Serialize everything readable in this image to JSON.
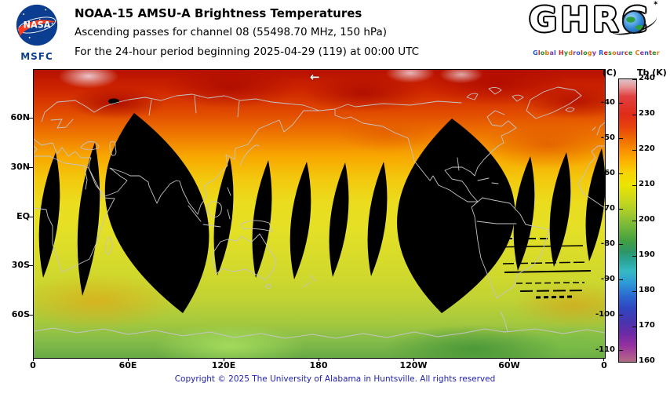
{
  "header": {
    "title": "NOAA-15 AMSU-A Brightness Temperatures",
    "subtitle": "Ascending passes for channel 08 (55498.70 MHz, 150 hPa)",
    "period_line": "For the 24-hour period beginning 2025-04-29 (119) at 00:00 UTC",
    "nasa": {
      "wordmark": "NASA",
      "center": "MSFC"
    },
    "ghrc": {
      "wordmark": "GHRC",
      "star": "✶",
      "tagline": "Global Hydrology Resource Center",
      "tagline_colors": [
        "#2255cc",
        "#cc2222",
        "#22882a",
        "#dd7700",
        "#8833aa"
      ]
    }
  },
  "map": {
    "arrow_annotation": "←",
    "lat_labels": [
      "60N",
      "30N",
      "EQ",
      "30S",
      "60S"
    ],
    "lon_labels": [
      "0",
      "60E",
      "120E",
      "180",
      "120W",
      "60W",
      "0"
    ]
  },
  "colorbar": {
    "left_unit": "(C)",
    "right_unit": "Tb (K)",
    "celsius_ticks": [
      "-40",
      "-50",
      "-60",
      "-70",
      "-80",
      "-90",
      "-100",
      "-110"
    ],
    "kelvin_ticks": [
      "240",
      "230",
      "220",
      "210",
      "200",
      "190",
      "180",
      "170",
      "160"
    ]
  },
  "footer": {
    "copyright": "Copyright © 2025 The University of Alabama in Huntsville. All rights reserved"
  },
  "chart_data": {
    "type": "heatmap",
    "title": "NOAA-15 AMSU-A Brightness Temperatures",
    "subtitle": "Ascending passes for channel 08 (55498.70 MHz, 150 hPa)",
    "period": "24-hour period beginning 2025-04-29 (119) at 00:00 UTC",
    "projection": "equirectangular world map, 0°E at left edge, 180° at center",
    "x_ticks": [
      "0",
      "60E",
      "120E",
      "180",
      "120W",
      "60W",
      "0"
    ],
    "y_ticks": [
      "60N",
      "30N",
      "EQ",
      "30S",
      "60S"
    ],
    "colorbar": {
      "left_unit": "(C)",
      "right_unit": "Tb (K)",
      "kelvin_range": [
        160,
        240
      ],
      "kelvin_ticks": [
        240,
        230,
        220,
        210,
        200,
        190,
        180,
        170,
        160
      ],
      "celsius_ticks": [
        -40,
        -50,
        -60,
        -70,
        -80,
        -90,
        -100,
        -110
      ],
      "legend_position": "right"
    },
    "approx_zonal_mean_tb_K": [
      {
        "lat": "75N",
        "tb": 233
      },
      {
        "lat": "60N",
        "tb": 228
      },
      {
        "lat": "45N",
        "tb": 223
      },
      {
        "lat": "30N",
        "tb": 218
      },
      {
        "lat": "15N",
        "tb": 215
      },
      {
        "lat": "EQ",
        "tb": 214
      },
      {
        "lat": "15S",
        "tb": 214
      },
      {
        "lat": "30S",
        "tb": 212
      },
      {
        "lat": "45S",
        "tb": 210
      },
      {
        "lat": "60S",
        "tb": 207
      },
      {
        "lat": "75S",
        "tb": 203
      }
    ],
    "missing_data_note": "Black lens-shaped regions are gaps between ascending orbital swaths; coastlines drawn in light gray over the field"
  }
}
